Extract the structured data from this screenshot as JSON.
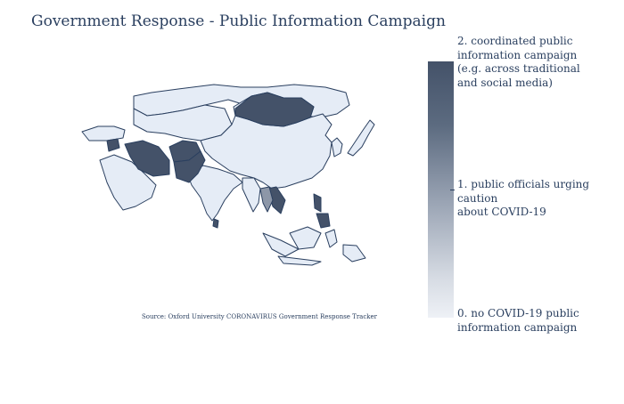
{
  "title": "Government Response - Public Information Campaign",
  "source": "Source:  Oxford University CORONAVIRUS Government Response Tracker",
  "colorbar": {
    "labels": [
      "2. coordinated public\ninformation campaign\n(e.g. across traditional\n and social media)",
      "1. public officials urging caution\nabout COVID-19",
      "0. no COVID-19 public\n information campaign"
    ],
    "colors": {
      "high": "#445269",
      "mid": "#9aa4b4",
      "low": "#eef1f6"
    }
  },
  "map": {
    "region": "Asia",
    "values": {
      "Mongolia": 2,
      "Iran": 2,
      "Afghanistan": 2,
      "Pakistan": 2,
      "Syria": 2,
      "Laos": 2,
      "Philippines": 2,
      "Sri Lanka": 2,
      "Thailand": 1,
      "China": 0,
      "India": 0,
      "Russia": 0,
      "Saudi Arabia": 0,
      "Indonesia": 0,
      "Kazakhstan": 0,
      "Japan": 0,
      "Myanmar": 0,
      "Malaysia": 0,
      "Turkey": 0
    },
    "background": "#ffffff",
    "border": "#2a3f5f"
  }
}
